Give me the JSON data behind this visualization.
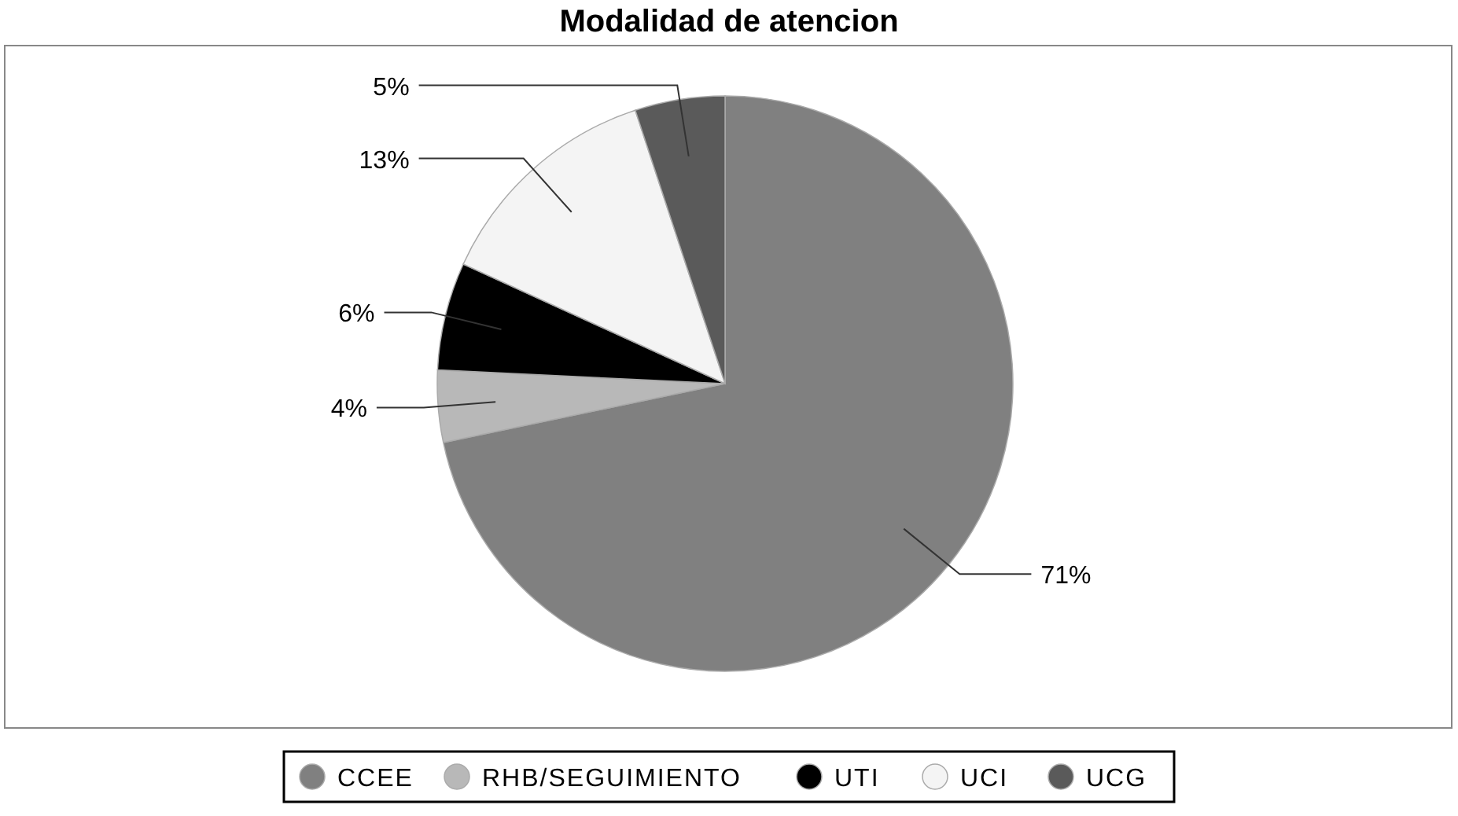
{
  "chart_data": {
    "type": "pie",
    "title": "Modalidad de atencion",
    "categories": [
      "CCEE",
      "RHB/SEGUIMIENTO",
      "UTI",
      "UCI",
      "UCG"
    ],
    "values": [
      71,
      4,
      6,
      13,
      5
    ],
    "colors": [
      "#808080",
      "#b8b8b8",
      "#000000",
      "#f4f4f4",
      "#5a5a5a"
    ],
    "value_labels": [
      "71%",
      "4%",
      "6%",
      "13%",
      "5%"
    ],
    "legend": "bottom"
  }
}
